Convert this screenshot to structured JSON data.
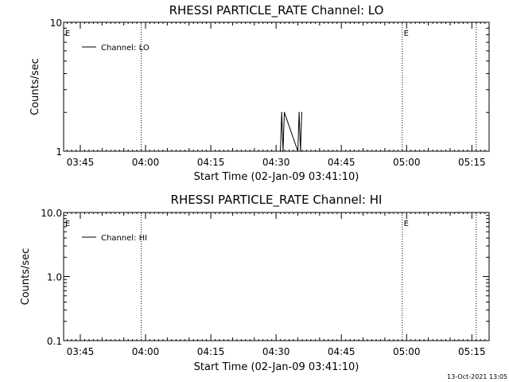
{
  "footer": {
    "timestamp": "13-Oct-2021 13:05"
  },
  "chart_data": [
    {
      "type": "line",
      "title": "RHESSI PARTICLE_RATE Channel: LO",
      "xlabel": "Start Time (02-Jan-09 03:41:10)",
      "ylabel": "Counts/sec",
      "x_tick_labels": [
        "03:45",
        "04:00",
        "04:15",
        "04:30",
        "04:45",
        "05:00",
        "05:15"
      ],
      "y_tick_labels": [
        "1",
        "10"
      ],
      "yscale": "log",
      "ylim": [
        1,
        10
      ],
      "legend": {
        "label": "Channel: LO",
        "placement": "top-left"
      },
      "event_marker": "E",
      "event_lines": [
        "03:59",
        "04:59",
        "05:16"
      ],
      "series": [
        {
          "name": "Channel: LO",
          "x": [
            "04:31:00",
            "04:31:18",
            "04:31:36",
            "04:31:54",
            "04:35:00",
            "04:35:18",
            "04:35:36",
            "04:35:54"
          ],
          "values": [
            1,
            2,
            1,
            2,
            1,
            2,
            1,
            2
          ]
        }
      ]
    },
    {
      "type": "line",
      "title": "RHESSI PARTICLE_RATE Channel: HI",
      "xlabel": "Start Time (02-Jan-09 03:41:10)",
      "ylabel": "Counts/sec",
      "x_tick_labels": [
        "03:45",
        "04:00",
        "04:15",
        "04:30",
        "04:45",
        "05:00",
        "05:15"
      ],
      "y_tick_labels": [
        "0.1",
        "1.0",
        "10.0"
      ],
      "yscale": "log",
      "ylim": [
        0.1,
        10
      ],
      "legend": {
        "label": "Channel: HI",
        "placement": "top-left"
      },
      "event_marker": "E",
      "event_lines": [
        "03:59",
        "04:59",
        "05:16"
      ],
      "series": [
        {
          "name": "Channel: HI",
          "x": [],
          "values": []
        }
      ]
    }
  ]
}
